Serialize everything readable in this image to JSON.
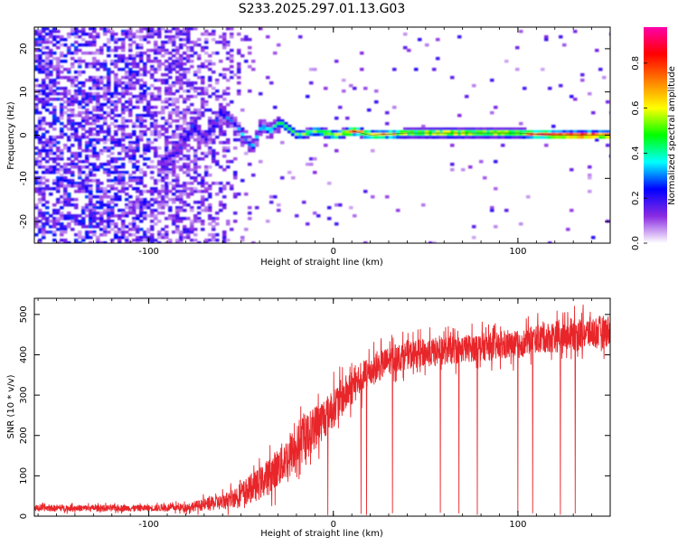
{
  "figure": {
    "title": "S233.2025.297.01.13.G03"
  },
  "chart_data": [
    {
      "type": "heatmap",
      "id": "spectrogram",
      "title": "S233.2025.297.01.13.G03",
      "xlabel": "Height of straight line (km)",
      "ylabel": "Frequency (Hz)",
      "xlim": [
        -162,
        150
      ],
      "ylim": [
        -25,
        25
      ],
      "xticks": [
        -100,
        0,
        100
      ],
      "yticks": [
        -20,
        -10,
        0,
        10,
        20
      ],
      "colorbar": {
        "label": "Normalized spectral amplitude",
        "range": [
          0,
          0.96
        ],
        "ticks": [
          0.0,
          0.2,
          0.4,
          0.6,
          0.8
        ],
        "tick_labels": [
          "0.0",
          "0.2",
          "0.4",
          "0.6",
          "0.8"
        ],
        "colormap": [
          "#ffffff",
          "#8a2be2",
          "#0000ff",
          "#00ffff",
          "#00ff00",
          "#ffff00",
          "#ff8000",
          "#ff0000",
          "#ff00aa"
        ]
      },
      "signal_track": {
        "description_values": "frequency (Hz) of the dominant signal vs height (km)",
        "x": [
          -95,
          -85,
          -78,
          -70,
          -62,
          -55,
          -45,
          -40,
          -35,
          -30,
          -20,
          -10,
          0,
          10,
          20,
          40,
          60,
          80,
          100,
          120,
          140,
          150
        ],
        "y": [
          -6,
          -4,
          2,
          -1,
          5,
          3,
          -3,
          2,
          1,
          3,
          0,
          1,
          0,
          1,
          0,
          0.5,
          0.5,
          0.5,
          0.5,
          0,
          0,
          0
        ],
        "amplitude": [
          0.25,
          0.3,
          0.3,
          0.3,
          0.3,
          0.35,
          0.35,
          0.4,
          0.45,
          0.5,
          0.55,
          0.6,
          0.7,
          0.85,
          0.75,
          0.7,
          0.75,
          0.7,
          0.75,
          0.95,
          0.95,
          0.95
        ]
      }
    },
    {
      "type": "line",
      "id": "snr",
      "title": "",
      "xlabel": "Height of straight line (km)",
      "ylabel": "SNR (10 * v/v)",
      "xlim": [
        -162,
        150
      ],
      "ylim": [
        0,
        540
      ],
      "xticks": [
        -100,
        0,
        100
      ],
      "yticks": [
        0,
        100,
        200,
        300,
        400,
        500
      ],
      "grid": false,
      "series": [
        {
          "name": "SNR",
          "color": "#e8262a",
          "trend_x": [
            -162,
            -100,
            -80,
            -60,
            -50,
            -40,
            -30,
            -20,
            -10,
            0,
            10,
            20,
            30,
            40,
            50,
            60,
            70,
            80,
            90,
            100,
            110,
            120,
            130,
            140,
            150
          ],
          "trend_y": [
            20,
            20,
            22,
            35,
            55,
            80,
            120,
            170,
            220,
            270,
            320,
            360,
            385,
            400,
            405,
            410,
            415,
            420,
            420,
            425,
            440,
            445,
            450,
            455,
            460
          ],
          "noise_amplitude": [
            8,
            8,
            10,
            20,
            30,
            40,
            50,
            55,
            55,
            50,
            45,
            40,
            35,
            35,
            35,
            35,
            35,
            35,
            35,
            35,
            35,
            40,
            40,
            40,
            40
          ],
          "dropouts_x": [
            -3,
            15,
            18,
            32,
            58,
            68,
            78,
            100,
            108,
            123,
            131
          ]
        }
      ]
    }
  ]
}
